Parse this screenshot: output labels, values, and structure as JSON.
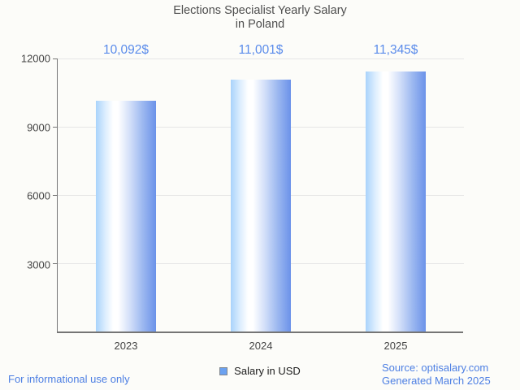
{
  "title": {
    "line1": "Elections Specialist Yearly Salary",
    "line2": "in Poland"
  },
  "chart_data": {
    "type": "bar",
    "categories": [
      "2023",
      "2024",
      "2025"
    ],
    "series": [
      {
        "name": "Salary in USD",
        "values": [
          10092,
          11001,
          11345
        ]
      }
    ],
    "annotations": [
      "10,092$",
      "11,001$",
      "11,345$"
    ],
    "ylim": [
      0,
      12000
    ],
    "y_ticks": [
      "12000",
      "9000",
      "6000",
      "3000"
    ],
    "grid": true,
    "legend_position": "bottom",
    "title": "Elections Specialist Yearly Salary in Poland",
    "xlabel": "",
    "ylabel": ""
  },
  "legend": {
    "label": "Salary in USD"
  },
  "footer": {
    "disclaimer": "For informational use only",
    "source_line1": "Source: optisalary.com",
    "source_line2": "Generated March 2025"
  },
  "colors": {
    "background": "#fcfcf9",
    "title": "#4e4e4e",
    "tick_label": "#444444",
    "annotation": "#5b8ceb",
    "link": "#4d7fe3",
    "axis": "#757575",
    "gridline": "#e6e6e6",
    "bar_edge_left": "#a9d3fb",
    "bar_mid": "#ffffff",
    "bar_edge_right": "#6b92e9",
    "legend_swatch": "#6ba1f0"
  }
}
